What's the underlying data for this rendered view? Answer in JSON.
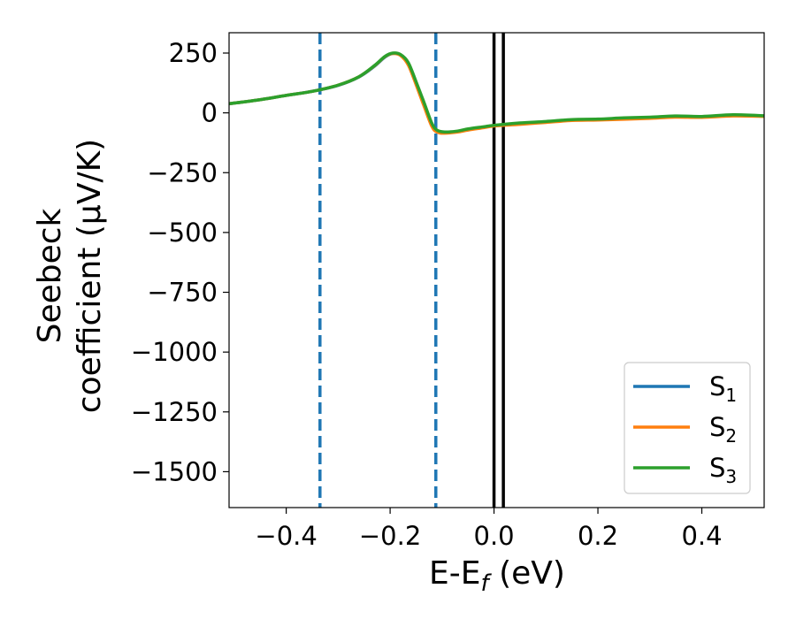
{
  "chart_data": {
    "type": "line",
    "xlabel": "E-E",
    "xlabel_sub": "f",
    "xlabel_unit": " (eV)",
    "ylabel_line1": "Seebeck",
    "ylabel_line2": "coefficient  (μV/K)",
    "xlim": [
      -0.51,
      0.52
    ],
    "ylim": [
      -1650,
      335
    ],
    "xticks": [
      -0.4,
      -0.2,
      0.0,
      0.2,
      0.4
    ],
    "xtick_labels": [
      "−0.4",
      "−0.2",
      "0.0",
      "0.2",
      "0.4"
    ],
    "yticks": [
      250,
      0,
      -250,
      -500,
      -750,
      -1000,
      -1250,
      -1500
    ],
    "ytick_labels": [
      "250",
      "0",
      "−250",
      "−500",
      "−750",
      "−1000",
      "−1250",
      "−1500"
    ],
    "grid": false,
    "legend_placement": "lower-right",
    "vlines_dashed": {
      "x": [
        -0.335,
        -0.112
      ],
      "color": "#1f77b4"
    },
    "vlines_solid": {
      "x": [
        0.0,
        0.018
      ],
      "color": "#000000"
    },
    "series": [
      {
        "name": "S",
        "name_sub": "1",
        "color": "#1f77b4",
        "points": [
          [
            -0.51,
            38
          ],
          [
            -0.45,
            55
          ],
          [
            -0.4,
            73
          ],
          [
            -0.35,
            90
          ],
          [
            -0.3,
            115
          ],
          [
            -0.26,
            150
          ],
          [
            -0.23,
            195
          ],
          [
            -0.21,
            233
          ],
          [
            -0.195,
            248
          ],
          [
            -0.18,
            242
          ],
          [
            -0.165,
            205
          ],
          [
            -0.15,
            125
          ],
          [
            -0.135,
            40
          ],
          [
            -0.12,
            -45
          ],
          [
            -0.11,
            -75
          ],
          [
            -0.095,
            -82
          ],
          [
            -0.07,
            -78
          ],
          [
            -0.05,
            -70
          ],
          [
            -0.02,
            -60
          ],
          [
            0.0,
            -53
          ],
          [
            0.05,
            -45
          ],
          [
            0.1,
            -38
          ],
          [
            0.15,
            -30
          ],
          [
            0.2,
            -28
          ],
          [
            0.25,
            -23
          ],
          [
            0.3,
            -20
          ],
          [
            0.35,
            -15
          ],
          [
            0.4,
            -16
          ],
          [
            0.46,
            -10
          ],
          [
            0.52,
            -13
          ]
        ]
      },
      {
        "name": "S",
        "name_sub": "2",
        "color": "#ff7f0e",
        "points": [
          [
            -0.51,
            38
          ],
          [
            -0.45,
            55
          ],
          [
            -0.4,
            73
          ],
          [
            -0.35,
            90
          ],
          [
            -0.3,
            116
          ],
          [
            -0.26,
            151
          ],
          [
            -0.23,
            197
          ],
          [
            -0.21,
            235
          ],
          [
            -0.195,
            248
          ],
          [
            -0.18,
            240
          ],
          [
            -0.165,
            200
          ],
          [
            -0.15,
            118
          ],
          [
            -0.135,
            30
          ],
          [
            -0.12,
            -55
          ],
          [
            -0.11,
            -80
          ],
          [
            -0.095,
            -85
          ],
          [
            -0.07,
            -80
          ],
          [
            -0.05,
            -72
          ],
          [
            -0.02,
            -62
          ],
          [
            0.0,
            -55
          ],
          [
            0.05,
            -48
          ],
          [
            0.1,
            -40
          ],
          [
            0.15,
            -32
          ],
          [
            0.2,
            -30
          ],
          [
            0.25,
            -27
          ],
          [
            0.3,
            -23
          ],
          [
            0.35,
            -18
          ],
          [
            0.4,
            -19
          ],
          [
            0.46,
            -13
          ],
          [
            0.52,
            -15
          ]
        ]
      },
      {
        "name": "S",
        "name_sub": "3",
        "color": "#2ca02c",
        "points": [
          [
            -0.51,
            38
          ],
          [
            -0.45,
            55
          ],
          [
            -0.4,
            73
          ],
          [
            -0.35,
            90
          ],
          [
            -0.3,
            116
          ],
          [
            -0.26,
            151
          ],
          [
            -0.23,
            198
          ],
          [
            -0.21,
            236
          ],
          [
            -0.195,
            250
          ],
          [
            -0.18,
            244
          ],
          [
            -0.165,
            210
          ],
          [
            -0.15,
            130
          ],
          [
            -0.135,
            45
          ],
          [
            -0.12,
            -42
          ],
          [
            -0.11,
            -72
          ],
          [
            -0.095,
            -80
          ],
          [
            -0.07,
            -76
          ],
          [
            -0.05,
            -67
          ],
          [
            -0.02,
            -58
          ],
          [
            0.0,
            -52
          ],
          [
            0.05,
            -42
          ],
          [
            0.1,
            -36
          ],
          [
            0.15,
            -28
          ],
          [
            0.2,
            -26
          ],
          [
            0.25,
            -21
          ],
          [
            0.3,
            -18
          ],
          [
            0.35,
            -13
          ],
          [
            0.4,
            -15
          ],
          [
            0.46,
            -8
          ],
          [
            0.52,
            -12
          ]
        ]
      }
    ]
  }
}
